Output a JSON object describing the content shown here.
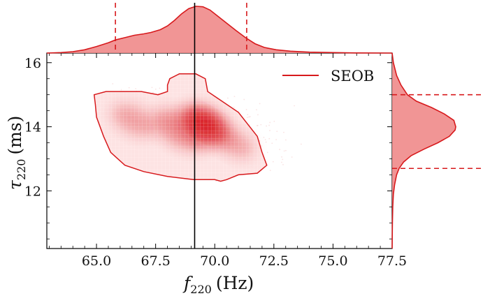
{
  "chart_data": {
    "type": "scatter",
    "subtype": "corner-plot-2d-density-with-marginals",
    "xlabel_main": "f",
    "xlabel_sub": "220",
    "xlabel_unit": "(Hz)",
    "ylabel_main": "τ",
    "ylabel_sub": "220",
    "ylabel_unit": "(ms)",
    "xlim": [
      62.9,
      77.5
    ],
    "ylim": [
      10.2,
      16.3
    ],
    "x_ticks": [
      65.0,
      67.5,
      70.0,
      72.5,
      75.0,
      77.5
    ],
    "x_tick_labels": [
      "65.0",
      "67.5",
      "70.0",
      "72.5",
      "75.0",
      "77.5"
    ],
    "y_ticks": [
      12,
      14,
      16
    ],
    "y_tick_labels": [
      "12",
      "14",
      "16"
    ],
    "legend": {
      "placement": "top-right",
      "entries": [
        {
          "name": "SEOB",
          "color": "#d7191c"
        }
      ]
    },
    "color": "#d7191c",
    "fill_color": "#f08a8a",
    "density_peak": {
      "f": 69.6,
      "tau": 14.1
    },
    "median_line_f": 69.15,
    "credible_interval_f": [
      65.8,
      71.35
    ],
    "credible_interval_tau": [
      12.7,
      15.0
    ],
    "contour_90": [
      [
        64.9,
        15.0
      ],
      [
        65.4,
        15.1
      ],
      [
        66.1,
        15.1
      ],
      [
        66.9,
        15.1
      ],
      [
        67.6,
        15.0
      ],
      [
        68.0,
        15.1
      ],
      [
        68.0,
        15.3
      ],
      [
        68.1,
        15.5
      ],
      [
        68.5,
        15.65
      ],
      [
        69.2,
        15.65
      ],
      [
        69.6,
        15.5
      ],
      [
        69.7,
        15.1
      ],
      [
        70.1,
        14.9
      ],
      [
        71.0,
        14.45
      ],
      [
        71.8,
        13.7
      ],
      [
        72.0,
        13.2
      ],
      [
        72.2,
        12.8
      ],
      [
        71.8,
        12.55
      ],
      [
        71.0,
        12.5
      ],
      [
        70.5,
        12.35
      ],
      [
        70.25,
        12.3
      ],
      [
        70.0,
        12.35
      ],
      [
        69.1,
        12.35
      ],
      [
        68.0,
        12.45
      ],
      [
        67.0,
        12.6
      ],
      [
        66.2,
        12.8
      ],
      [
        65.6,
        13.2
      ],
      [
        65.3,
        13.7
      ],
      [
        65.0,
        14.3
      ],
      [
        64.95,
        14.7
      ]
    ],
    "marginal_f_density": {
      "x": [
        62.9,
        63.5,
        64.0,
        64.5,
        65.0,
        65.5,
        65.8,
        66.2,
        66.6,
        67.0,
        67.3,
        67.7,
        68.0,
        68.3,
        68.6,
        68.9,
        69.2,
        69.5,
        69.8,
        70.1,
        70.5,
        70.9,
        71.3,
        71.7,
        72.1,
        72.6,
        73.2,
        74.0,
        75.0,
        76.0,
        77.5
      ],
      "density": [
        0.0,
        0.01,
        0.03,
        0.07,
        0.14,
        0.22,
        0.28,
        0.33,
        0.38,
        0.41,
        0.44,
        0.5,
        0.58,
        0.7,
        0.84,
        0.95,
        1.0,
        0.99,
        0.92,
        0.8,
        0.64,
        0.48,
        0.33,
        0.2,
        0.12,
        0.07,
        0.04,
        0.02,
        0.01,
        0.003,
        0.0
      ]
    },
    "marginal_tau_density": {
      "tau": [
        16.3,
        16.0,
        15.6,
        15.3,
        15.0,
        14.8,
        14.6,
        14.4,
        14.2,
        14.0,
        13.9,
        13.7,
        13.5,
        13.3,
        13.1,
        12.9,
        12.7,
        12.5,
        12.2,
        11.9,
        11.5,
        11.0,
        10.2
      ],
      "density": [
        0.0,
        0.02,
        0.07,
        0.14,
        0.24,
        0.38,
        0.62,
        0.82,
        0.97,
        1.0,
        0.99,
        0.9,
        0.72,
        0.5,
        0.3,
        0.18,
        0.11,
        0.07,
        0.04,
        0.02,
        0.01,
        0.004,
        0.0
      ]
    }
  }
}
